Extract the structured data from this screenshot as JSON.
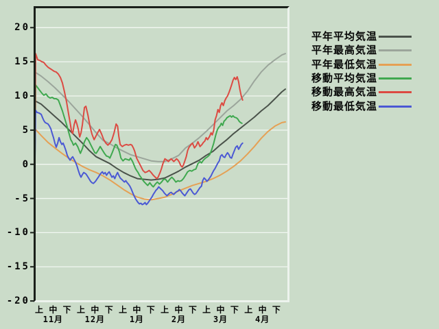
{
  "window": {
    "background_color": "#cbdcc9",
    "frame_dark_color": "#1a201a",
    "frame_light_color": "#edf3ed",
    "gridline_color": "#f2f7f2",
    "text_color": "#050505"
  },
  "y_axis": {
    "tick_labels": [
      "20",
      "15",
      "10",
      "5",
      "0",
      "-5",
      "-10",
      "-15",
      "-20"
    ],
    "tick_values": [
      20,
      15,
      10,
      5,
      0,
      -5,
      -10,
      -15,
      -20
    ]
  },
  "x_axis": {
    "dekad_labels": [
      "上",
      "中",
      "下"
    ],
    "month_labels": [
      "11月",
      "12月",
      "1月",
      "2月",
      "3月",
      "4月"
    ]
  },
  "chart_data": {
    "type": "line",
    "title": "",
    "xlabel": "",
    "ylabel": "",
    "ylim": [
      -20,
      20
    ],
    "grid": "horizontal",
    "legend_position": "right",
    "x_unit": "dekad index: 0=11月上旬 … 17=4月下旬",
    "series": [
      {
        "id": "normal-mean",
        "label": "平年平均気温",
        "color": "#4a524a",
        "style": "smooth",
        "x": [
          -0.3,
          0.15,
          0.64,
          1.13,
          1.63,
          2.12,
          2.61,
          3.1,
          3.6,
          4.09,
          4.58,
          5.07,
          5.57,
          6.06,
          6.55,
          7.04,
          7.54,
          8.03,
          8.52,
          9.01,
          9.51,
          10.0,
          10.49,
          10.99,
          11.48,
          11.97,
          12.46,
          12.96,
          13.45,
          13.94,
          14.43,
          14.93,
          15.42,
          15.91,
          16.4,
          16.9,
          17.39,
          17.64
        ],
        "y": [
          9.3,
          8.8,
          7.9,
          7.0,
          6.1,
          5.1,
          4.1,
          3.1,
          2.0,
          1.1,
          0.6,
          0.1,
          -0.6,
          -1.2,
          -1.7,
          -2.1,
          -2.2,
          -2.3,
          -2.2,
          -2.0,
          -1.5,
          -1.0,
          -0.4,
          0.1,
          0.6,
          1.3,
          1.9,
          2.8,
          3.6,
          4.5,
          5.3,
          6.1,
          6.9,
          7.8,
          8.6,
          9.6,
          10.6,
          11.0
        ]
      },
      {
        "id": "normal-max",
        "label": "平年最高気温",
        "color": "#9ba59b",
        "style": "smooth",
        "x": [
          -0.3,
          0.15,
          0.64,
          1.13,
          1.63,
          2.12,
          2.61,
          3.1,
          3.6,
          4.09,
          4.58,
          5.07,
          5.57,
          6.06,
          6.55,
          7.04,
          7.54,
          8.03,
          8.52,
          9.01,
          9.51,
          10.0,
          10.49,
          10.99,
          11.48,
          11.97,
          12.46,
          12.96,
          13.45,
          13.94,
          14.43,
          14.93,
          15.42,
          15.91,
          16.4,
          16.9,
          17.39,
          17.64
        ],
        "y": [
          13.5,
          12.9,
          12.1,
          11.2,
          10.2,
          9.2,
          8.1,
          7.0,
          5.8,
          4.6,
          3.5,
          3.0,
          2.4,
          1.9,
          1.4,
          1.1,
          0.8,
          0.5,
          0.4,
          0.4,
          0.8,
          1.3,
          2.4,
          3.1,
          3.9,
          4.8,
          5.8,
          6.8,
          7.8,
          8.6,
          9.5,
          10.7,
          12.2,
          13.5,
          14.5,
          15.3,
          16.0,
          16.2
        ]
      },
      {
        "id": "normal-min",
        "label": "平年最低気温",
        "color": "#e5a054",
        "style": "smooth",
        "x": [
          -0.3,
          0.15,
          0.64,
          1.13,
          1.63,
          2.12,
          2.61,
          3.1,
          3.6,
          4.09,
          4.58,
          5.07,
          5.57,
          6.06,
          6.55,
          7.04,
          7.54,
          8.03,
          8.52,
          9.01,
          9.51,
          10.0,
          10.49,
          10.99,
          11.48,
          11.97,
          12.46,
          12.96,
          13.45,
          13.94,
          14.43,
          14.93,
          15.42,
          15.91,
          16.4,
          16.9,
          17.39,
          17.64
        ],
        "y": [
          5.2,
          4.2,
          3.2,
          2.4,
          1.6,
          0.9,
          0.3,
          -0.3,
          -0.8,
          -1.2,
          -1.7,
          -2.3,
          -3.0,
          -3.7,
          -4.3,
          -4.8,
          -5.1,
          -5.2,
          -5.0,
          -4.8,
          -4.4,
          -3.9,
          -3.5,
          -3.1,
          -2.8,
          -2.5,
          -2.1,
          -1.6,
          -1.0,
          -0.3,
          0.5,
          1.5,
          2.6,
          3.8,
          4.8,
          5.6,
          6.1,
          6.2
        ]
      },
      {
        "id": "moving-mean",
        "label": "移動平均気温",
        "color": "#3fa84f",
        "style": "jagged",
        "x": [
          -0.3,
          -0.25,
          -0.1,
          0.05,
          0.2,
          0.34,
          0.49,
          0.64,
          0.79,
          0.94,
          1.08,
          1.23,
          1.38,
          1.53,
          1.67,
          1.82,
          1.97,
          2.12,
          2.27,
          2.36,
          2.46,
          2.61,
          2.76,
          2.86,
          2.96,
          3.1,
          3.25,
          3.4,
          3.55,
          3.69,
          3.84,
          3.99,
          4.09,
          4.24,
          4.38,
          4.53,
          4.68,
          4.83,
          4.98,
          5.07,
          5.22,
          5.37,
          5.47,
          5.57,
          5.67,
          5.76,
          5.86,
          6.01,
          6.16,
          6.31,
          6.45,
          6.55,
          6.7,
          6.8,
          6.9,
          6.99,
          7.09,
          7.19,
          7.29,
          7.39,
          7.54,
          7.68,
          7.78,
          7.93,
          8.08,
          8.18,
          8.33,
          8.47,
          8.62,
          8.77,
          8.92,
          9.06,
          9.21,
          9.36,
          9.51,
          9.65,
          9.8,
          9.95,
          10.05,
          10.2,
          10.34,
          10.49,
          10.64,
          10.79,
          10.94,
          11.08,
          11.23,
          11.38,
          11.53,
          11.63,
          11.77,
          11.92,
          12.07,
          12.22,
          12.36,
          12.51,
          12.66,
          12.76,
          12.86,
          12.96,
          13.05,
          13.15,
          13.25,
          13.35,
          13.45,
          13.6,
          13.69,
          13.79,
          13.89,
          13.99,
          14.14,
          14.24,
          14.33,
          14.43,
          14.53
        ],
        "y": [
          0,
          11.6,
          11.2,
          10.8,
          10.4,
          10.1,
          10.3,
          9.9,
          9.7,
          9.8,
          9.6,
          9.6,
          9.4,
          8.6,
          7.8,
          6.8,
          5.8,
          4.7,
          3.6,
          3.3,
          2.8,
          3.1,
          2.6,
          2.1,
          1.6,
          2.3,
          3.3,
          3.9,
          3.5,
          2.9,
          2.3,
          1.7,
          1.6,
          2.1,
          2.6,
          2.1,
          1.6,
          1.2,
          1.1,
          0.9,
          1.6,
          2.4,
          2.9,
          2.8,
          2.3,
          1.8,
          0.9,
          0.5,
          0.8,
          0.7,
          0.6,
          0.9,
          0.4,
          -0.1,
          -0.6,
          -0.9,
          -1.2,
          -1.6,
          -1.9,
          -2.2,
          -2.6,
          -2.9,
          -3.1,
          -2.7,
          -3.1,
          -3.3,
          -2.9,
          -2.6,
          -2.9,
          -2.6,
          -2.2,
          -2.2,
          -2.6,
          -2.2,
          -1.9,
          -2.2,
          -2.6,
          -2.4,
          -2.5,
          -2.4,
          -2.1,
          -1.6,
          -1.1,
          -0.9,
          -1.0,
          -0.8,
          -0.7,
          0.1,
          0.4,
          0.2,
          0.6,
          0.9,
          1.1,
          1.4,
          2.1,
          3.1,
          4.3,
          5.0,
          5.4,
          5.6,
          6.0,
          5.7,
          6.3,
          6.5,
          6.8,
          7.0,
          7.1,
          6.9,
          7.1,
          6.9,
          6.8,
          6.6,
          6.3,
          6.1,
          6.0
        ]
      },
      {
        "id": "moving-max",
        "label": "移動最高気温",
        "color": "#dc4a42",
        "style": "jagged",
        "x": [
          -0.3,
          -0.25,
          -0.1,
          0.05,
          0.2,
          0.34,
          0.49,
          0.64,
          0.79,
          0.94,
          1.08,
          1.23,
          1.38,
          1.53,
          1.67,
          1.82,
          1.97,
          2.12,
          2.22,
          2.32,
          2.41,
          2.51,
          2.61,
          2.71,
          2.81,
          2.91,
          3.0,
          3.1,
          3.25,
          3.35,
          3.5,
          3.65,
          3.79,
          3.94,
          4.04,
          4.19,
          4.33,
          4.48,
          4.63,
          4.78,
          4.93,
          5.07,
          5.22,
          5.37,
          5.52,
          5.62,
          5.71,
          5.81,
          5.96,
          6.11,
          6.26,
          6.4,
          6.55,
          6.65,
          6.75,
          6.85,
          6.99,
          7.14,
          7.29,
          7.44,
          7.59,
          7.73,
          7.88,
          8.03,
          8.18,
          8.33,
          8.42,
          8.52,
          8.67,
          8.77,
          8.87,
          9.01,
          9.16,
          9.26,
          9.36,
          9.46,
          9.56,
          9.65,
          9.75,
          9.85,
          9.95,
          10.05,
          10.15,
          10.25,
          10.34,
          10.44,
          10.54,
          10.64,
          10.74,
          10.89,
          10.99,
          11.13,
          11.28,
          11.38,
          11.53,
          11.67,
          11.77,
          11.87,
          11.97,
          12.07,
          12.22,
          12.32,
          12.41,
          12.51,
          12.61,
          12.71,
          12.81,
          12.91,
          13.0,
          13.1,
          13.2,
          13.3,
          13.4,
          13.5,
          13.6,
          13.69,
          13.79,
          13.89,
          13.99,
          14.09,
          14.19,
          14.29,
          14.38,
          14.48,
          14.58
        ],
        "y": [
          0,
          16.2,
          15.3,
          15.2,
          15.0,
          14.9,
          14.5,
          14.2,
          14.0,
          13.8,
          13.6,
          13.5,
          13.2,
          12.7,
          11.9,
          10.6,
          9.1,
          7.3,
          6.1,
          4.9,
          4.5,
          5.8,
          6.5,
          5.9,
          5.1,
          4.0,
          4.6,
          5.8,
          8.3,
          8.5,
          7.2,
          5.5,
          4.4,
          3.6,
          4.0,
          4.6,
          5.1,
          4.4,
          3.6,
          3.1,
          2.8,
          3.1,
          3.6,
          4.6,
          5.9,
          5.6,
          4.1,
          2.9,
          2.6,
          2.8,
          2.9,
          2.8,
          2.9,
          2.8,
          2.4,
          1.9,
          0.9,
          0.3,
          -0.3,
          -0.9,
          -1.2,
          -1.1,
          -0.9,
          -1.2,
          -1.6,
          -1.9,
          -2.1,
          -1.9,
          -1.2,
          -0.6,
          0.1,
          0.8,
          0.6,
          0.4,
          0.6,
          0.8,
          0.6,
          0.4,
          0.6,
          0.8,
          0.6,
          0.3,
          -0.2,
          -0.4,
          -0.1,
          0.5,
          1.1,
          2.0,
          2.5,
          2.9,
          3.1,
          2.4,
          2.8,
          3.3,
          2.6,
          2.9,
          3.2,
          3.4,
          3.9,
          3.6,
          4.1,
          4.6,
          4.3,
          5.0,
          6.5,
          7.1,
          8.0,
          7.6,
          8.6,
          9.0,
          8.6,
          9.3,
          9.7,
          10.0,
          10.5,
          11.0,
          11.6,
          12.3,
          12.7,
          12.4,
          12.8,
          12.1,
          11.0,
          10.0,
          9.4
        ]
      },
      {
        "id": "moving-min",
        "label": "移動最低気温",
        "color": "#4a58d4",
        "style": "jagged",
        "x": [
          -0.3,
          -0.25,
          -0.15,
          0.0,
          0.15,
          0.25,
          0.34,
          0.44,
          0.54,
          0.64,
          0.74,
          0.84,
          0.94,
          1.03,
          1.13,
          1.23,
          1.33,
          1.43,
          1.53,
          1.63,
          1.72,
          1.82,
          1.92,
          2.02,
          2.12,
          2.22,
          2.32,
          2.41,
          2.51,
          2.61,
          2.71,
          2.81,
          2.91,
          3.0,
          3.1,
          3.2,
          3.35,
          3.45,
          3.6,
          3.69,
          3.79,
          3.89,
          4.04,
          4.14,
          4.24,
          4.33,
          4.43,
          4.53,
          4.63,
          4.73,
          4.83,
          4.93,
          5.02,
          5.12,
          5.22,
          5.32,
          5.42,
          5.52,
          5.62,
          5.71,
          5.81,
          5.91,
          6.01,
          6.11,
          6.21,
          6.31,
          6.4,
          6.5,
          6.6,
          6.7,
          6.8,
          6.9,
          6.99,
          7.09,
          7.19,
          7.29,
          7.39,
          7.49,
          7.59,
          7.68,
          7.78,
          7.88,
          7.98,
          8.08,
          8.18,
          8.28,
          8.37,
          8.47,
          8.57,
          8.67,
          8.77,
          8.87,
          8.97,
          9.06,
          9.16,
          9.26,
          9.36,
          9.46,
          9.56,
          9.65,
          9.75,
          9.85,
          9.95,
          10.05,
          10.15,
          10.25,
          10.34,
          10.44,
          10.54,
          10.64,
          10.74,
          10.84,
          10.94,
          11.03,
          11.13,
          11.23,
          11.33,
          11.43,
          11.53,
          11.63,
          11.72,
          11.82,
          11.92,
          12.02,
          12.12,
          12.22,
          12.32,
          12.41,
          12.51,
          12.61,
          12.71,
          12.81,
          12.91,
          13.0,
          13.1,
          13.2,
          13.3,
          13.4,
          13.5,
          13.6,
          13.69,
          13.79,
          13.89,
          13.99,
          14.09,
          14.19,
          14.29,
          14.38,
          14.48,
          14.58
        ],
        "y": [
          0,
          7.9,
          7.6,
          7.5,
          7.3,
          6.8,
          6.4,
          6.1,
          6.0,
          5.9,
          5.6,
          5.2,
          4.5,
          3.9,
          3.1,
          2.5,
          3.1,
          3.9,
          3.3,
          2.9,
          3.1,
          2.6,
          2.0,
          1.3,
          0.9,
          0.6,
          0.9,
          1.1,
          0.7,
          0.3,
          -0.2,
          -0.9,
          -1.5,
          -1.9,
          -1.5,
          -1.2,
          -1.4,
          -1.7,
          -2.2,
          -2.5,
          -2.7,
          -2.8,
          -2.5,
          -2.2,
          -1.9,
          -1.6,
          -1.3,
          -1.1,
          -1.4,
          -1.2,
          -1.6,
          -1.3,
          -1.1,
          -1.5,
          -1.9,
          -1.7,
          -2.1,
          -1.6,
          -1.2,
          -1.6,
          -2.0,
          -2.2,
          -2.4,
          -2.6,
          -2.4,
          -2.7,
          -2.9,
          -3.2,
          -3.6,
          -4.1,
          -4.6,
          -5.0,
          -5.3,
          -5.6,
          -5.8,
          -5.7,
          -5.9,
          -5.8,
          -5.6,
          -5.9,
          -5.7,
          -5.4,
          -5.1,
          -4.8,
          -4.4,
          -4.1,
          -3.8,
          -3.6,
          -3.3,
          -3.5,
          -3.7,
          -3.9,
          -4.2,
          -4.4,
          -4.6,
          -4.4,
          -4.2,
          -4.1,
          -4.3,
          -4.4,
          -4.2,
          -4.0,
          -3.9,
          -3.7,
          -3.9,
          -4.2,
          -4.4,
          -4.6,
          -4.3,
          -4.0,
          -3.7,
          -3.6,
          -3.9,
          -4.2,
          -4.4,
          -4.3,
          -4.0,
          -3.7,
          -3.4,
          -3.2,
          -2.4,
          -2.0,
          -2.2,
          -2.5,
          -2.3,
          -2.0,
          -1.7,
          -1.3,
          -0.9,
          -0.6,
          -0.2,
          0.2,
          0.5,
          1.2,
          1.4,
          1.1,
          1.0,
          1.4,
          1.7,
          1.4,
          1.0,
          0.9,
          1.5,
          2.0,
          2.5,
          2.7,
          2.2,
          2.5,
          2.9,
          3.1
        ]
      }
    ]
  }
}
